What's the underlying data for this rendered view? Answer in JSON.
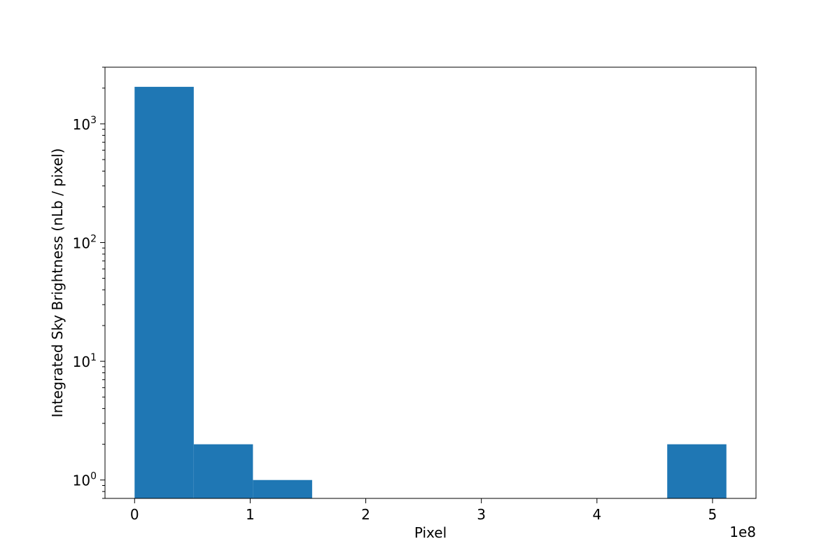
{
  "chart_data": {
    "type": "bar",
    "subtype": "histogram",
    "xlabel": "Pixel",
    "ylabel": "Integrated Sky Brightness (nLb / pixel)",
    "x_offset_text": "1e8",
    "x_scale": "linear",
    "y_scale": "log",
    "xlim": [
      -25600000.0,
      537600000.0
    ],
    "ylim": [
      0.7,
      3000
    ],
    "x_ticks": [
      0,
      1,
      2,
      3,
      4,
      5
    ],
    "x_tick_labels": [
      "0",
      "1",
      "2",
      "3",
      "4",
      "5"
    ],
    "y_ticks": [
      1,
      10,
      100,
      1000
    ],
    "y_tick_labels": [
      {
        "base": "10",
        "exp": "0"
      },
      {
        "base": "10",
        "exp": "1"
      },
      {
        "base": "10",
        "exp": "2"
      },
      {
        "base": "10",
        "exp": "3"
      }
    ],
    "bin_edges": [
      0,
      51200000.0,
      102400000.0,
      153600000.0,
      204800000.0,
      256000000.0,
      307200000.0,
      358400000.0,
      409600000.0,
      460800000.0,
      512000000.0
    ],
    "counts": [
      2050,
      2,
      1,
      0,
      0,
      0,
      0,
      0,
      0,
      2
    ],
    "grid": false,
    "legend": "none",
    "bar_color": "#1f77b4",
    "axes_color": "#000000"
  }
}
